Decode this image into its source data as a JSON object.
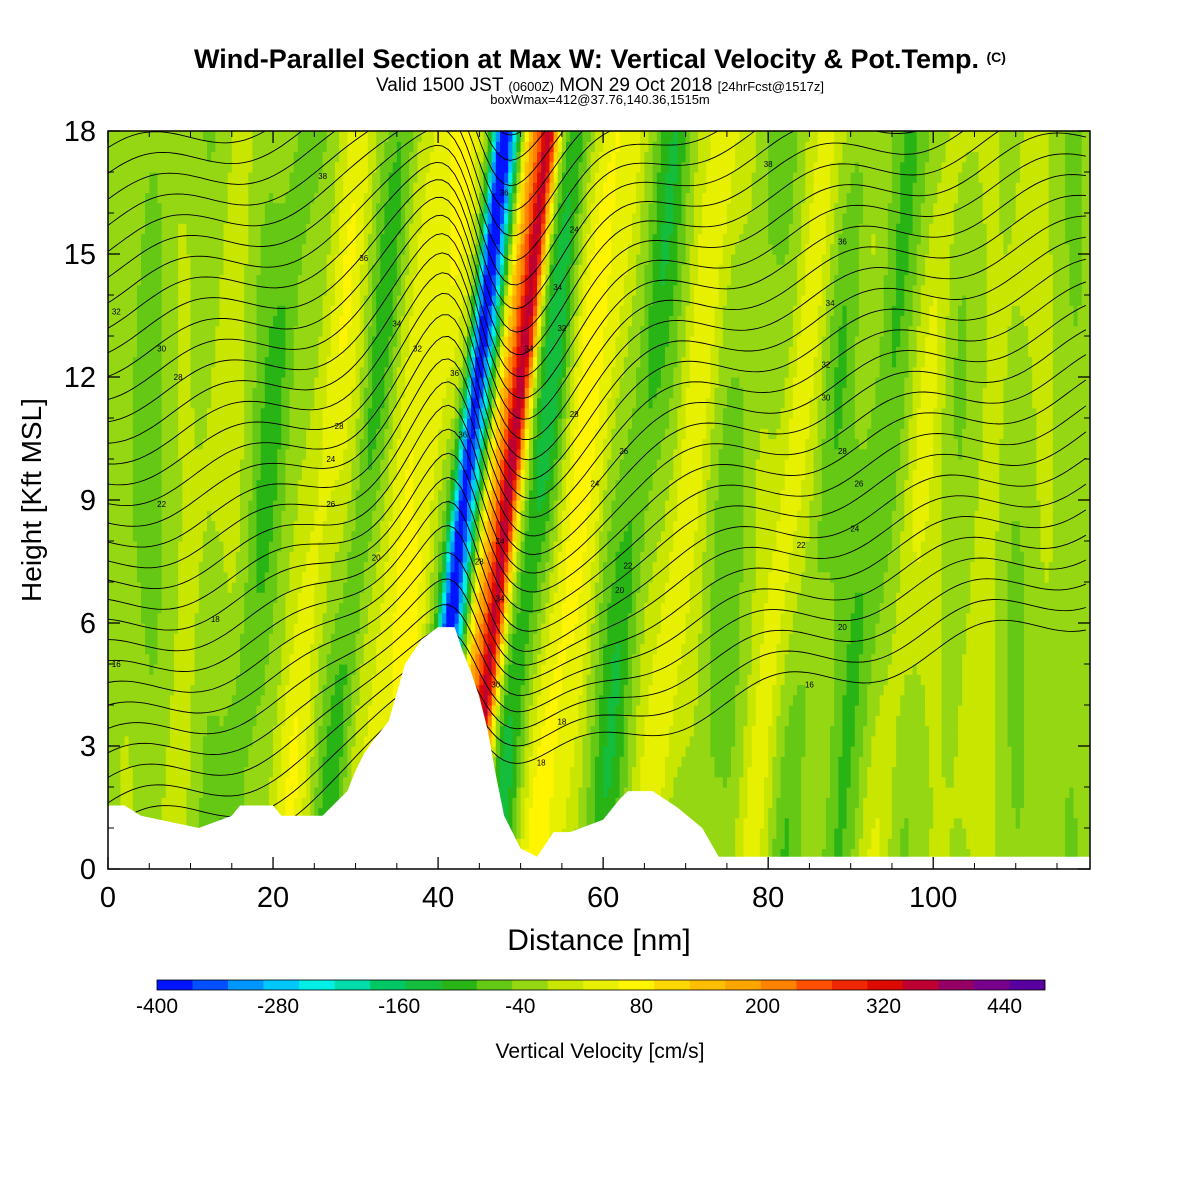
{
  "title": {
    "main": "Wind-Parallel Section at Max W: Vertical Velocity & Pot.Temp.",
    "copyright": "(C)"
  },
  "subtitle": {
    "valid_a": "Valid 1500 JST",
    "valid_utc": "(0600Z)",
    "valid_b": "MON 29 Oct 2018",
    "forecast": "[24hrFcst@1517z]",
    "boxline": "boxWmax=412@37.76,140.36,1515m"
  },
  "chart_data": {
    "type": "heatmap",
    "xlabel": "Distance [nm]",
    "ylabel": "Height [Kft MSL]",
    "xlim": [
      0,
      119
    ],
    "ylim": [
      0,
      18
    ],
    "xticks": [
      0,
      20,
      40,
      60,
      80,
      100
    ],
    "yticks": [
      0,
      3,
      6,
      9,
      12,
      15,
      18
    ],
    "colorbar": {
      "label": "Vertical Velocity [cm/s]",
      "range": [
        -400,
        480
      ],
      "step": 40,
      "tick_labels": [
        "-400",
        "-280",
        "-160",
        "-40",
        "80",
        "200",
        "320",
        "440"
      ],
      "tick_values": [
        -400,
        -280,
        -160,
        -40,
        80,
        200,
        320,
        440
      ],
      "colors": [
        "#0014ff",
        "#0050ff",
        "#0096ff",
        "#00c8ff",
        "#00f0e6",
        "#00dcaa",
        "#00c864",
        "#14be3c",
        "#28b414",
        "#64c814",
        "#96d714",
        "#c8e600",
        "#e6f000",
        "#fff500",
        "#ffd700",
        "#ffbe00",
        "#ffa500",
        "#ff8200",
        "#ff5000",
        "#f02800",
        "#dc0a00",
        "#be0032",
        "#960064",
        "#78008c",
        "#5a00a0"
      ]
    },
    "updraft_centers": [
      {
        "x": 48.5,
        "w": 430
      },
      {
        "x": 46.5,
        "w": 330
      },
      {
        "x": 36,
        "w": 90
      },
      {
        "x": 56,
        "w": 100
      },
      {
        "x": 70,
        "w": 90
      },
      {
        "x": 83,
        "w": 80
      },
      {
        "x": 26,
        "w": 80
      }
    ],
    "downdraft_centers": [
      {
        "x": 43.5,
        "w": -330
      },
      {
        "x": 52,
        "w": -120
      },
      {
        "x": 64,
        "w": -90
      },
      {
        "x": 93,
        "w": -60
      }
    ],
    "theta_contour_labels": [
      {
        "text": "38",
        "x": 26,
        "y": 16.9
      },
      {
        "text": "36",
        "x": 31,
        "y": 14.9
      },
      {
        "text": "34",
        "x": 35,
        "y": 13.3
      },
      {
        "text": "32",
        "x": 37.5,
        "y": 12.7
      },
      {
        "text": "32",
        "x": 1,
        "y": 13.6
      },
      {
        "text": "30",
        "x": 6.5,
        "y": 12.7
      },
      {
        "text": "28",
        "x": 8.5,
        "y": 12.0
      },
      {
        "text": "28",
        "x": 28,
        "y": 10.8
      },
      {
        "text": "24",
        "x": 27,
        "y": 10.0
      },
      {
        "text": "22",
        "x": 6.5,
        "y": 8.9
      },
      {
        "text": "26",
        "x": 27,
        "y": 8.9
      },
      {
        "text": "20",
        "x": 32.5,
        "y": 7.6
      },
      {
        "text": "18",
        "x": 13,
        "y": 6.1
      },
      {
        "text": "16",
        "x": 1,
        "y": 5.0
      },
      {
        "text": "36",
        "x": 42,
        "y": 12.1
      },
      {
        "text": "36",
        "x": 43,
        "y": 10.6
      },
      {
        "text": "28",
        "x": 45,
        "y": 7.5
      },
      {
        "text": "24",
        "x": 47.5,
        "y": 8.0
      },
      {
        "text": "34",
        "x": 47.5,
        "y": 6.6
      },
      {
        "text": "30",
        "x": 47,
        "y": 4.5
      },
      {
        "text": "18",
        "x": 52.5,
        "y": 2.6
      },
      {
        "text": "36",
        "x": 48,
        "y": 16.5
      },
      {
        "text": "34",
        "x": 51,
        "y": 12.7
      },
      {
        "text": "24",
        "x": 56.5,
        "y": 15.6
      },
      {
        "text": "34",
        "x": 54.5,
        "y": 14.2
      },
      {
        "text": "32",
        "x": 55,
        "y": 13.2
      },
      {
        "text": "28",
        "x": 56.5,
        "y": 11.1
      },
      {
        "text": "26",
        "x": 62.5,
        "y": 10.2
      },
      {
        "text": "24",
        "x": 59,
        "y": 9.4
      },
      {
        "text": "22",
        "x": 63,
        "y": 7.4
      },
      {
        "text": "20",
        "x": 62,
        "y": 6.8
      },
      {
        "text": "18",
        "x": 55,
        "y": 3.6
      },
      {
        "text": "38",
        "x": 80,
        "y": 17.2
      },
      {
        "text": "36",
        "x": 89,
        "y": 15.3
      },
      {
        "text": "34",
        "x": 87.5,
        "y": 13.8
      },
      {
        "text": "32",
        "x": 87,
        "y": 12.3
      },
      {
        "text": "30",
        "x": 87,
        "y": 11.5
      },
      {
        "text": "28",
        "x": 89,
        "y": 10.2
      },
      {
        "text": "26",
        "x": 91,
        "y": 9.4
      },
      {
        "text": "24",
        "x": 90.5,
        "y": 8.3
      },
      {
        "text": "22",
        "x": 84,
        "y": 7.9
      },
      {
        "text": "20",
        "x": 89,
        "y": 5.9
      },
      {
        "text": "16",
        "x": 85,
        "y": 4.5
      }
    ]
  }
}
